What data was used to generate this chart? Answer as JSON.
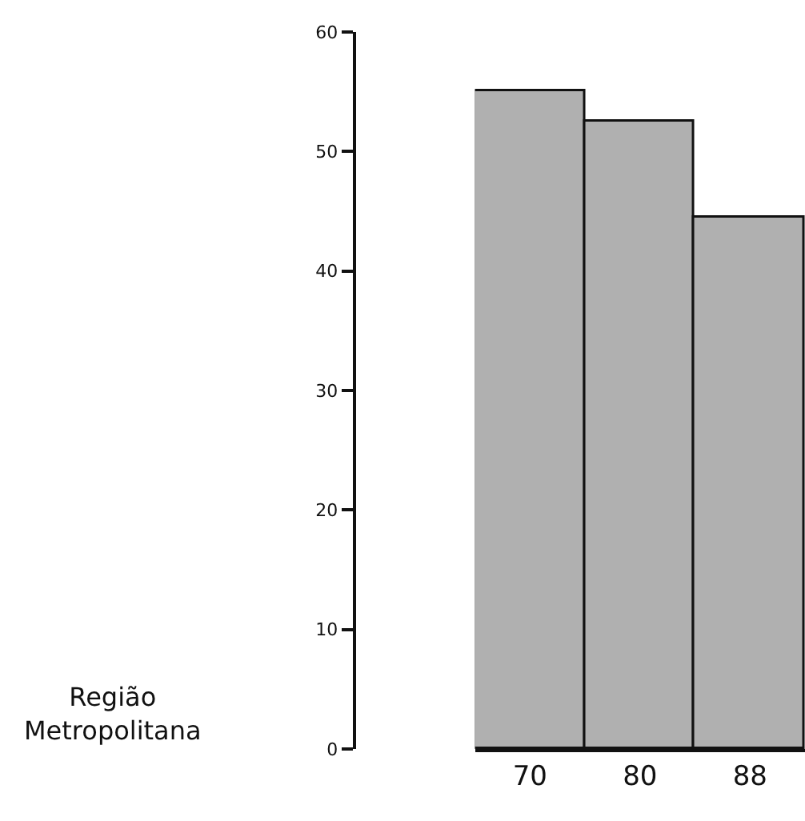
{
  "chart_data": {
    "type": "bar",
    "categories": [
      "70",
      "80",
      "88"
    ],
    "values": [
      55,
      52.5,
      44.5
    ],
    "color": "#b0b0b0",
    "ylim": [
      0,
      60
    ],
    "yticks": [
      0,
      10,
      20,
      30,
      40,
      50,
      60
    ],
    "grid": false,
    "annotations": [
      "Região\nMetropolitana"
    ]
  }
}
